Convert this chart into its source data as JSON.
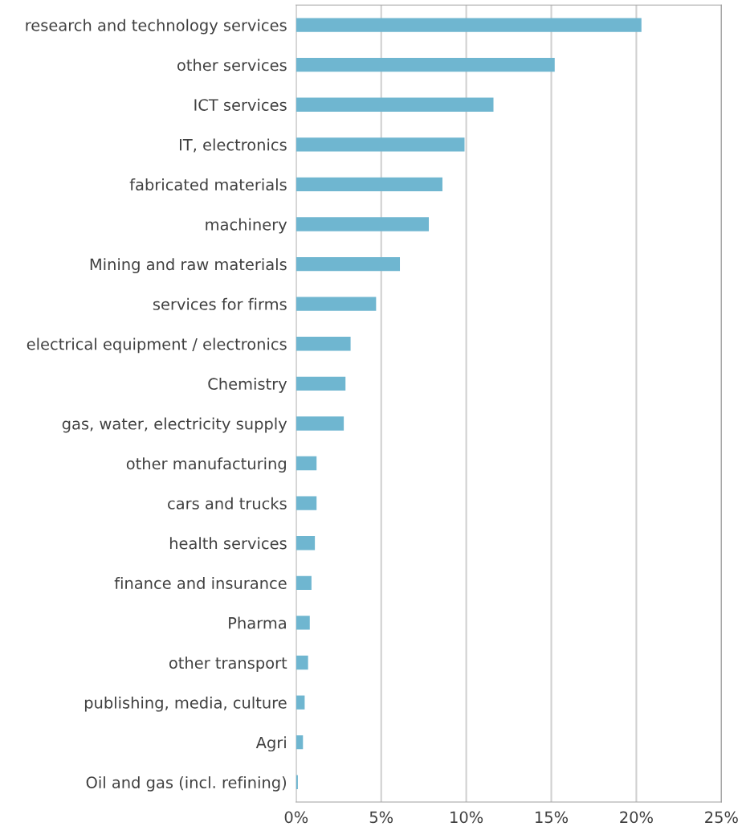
{
  "chart_data": {
    "type": "bar",
    "orientation": "horizontal",
    "categories": [
      "research and technology services",
      "other services",
      "ICT services",
      "IT, electronics",
      "fabricated materials",
      "machinery",
      "Mining and raw materials",
      "services for firms",
      "electrical equipment / electronics",
      "Chemistry",
      "gas, water, electricity supply",
      "other manufacturing",
      "cars and trucks",
      "health services",
      "finance and insurance",
      "Pharma",
      "other transport",
      "publishing, media, culture",
      "Agri",
      "Oil and gas (incl. refining)"
    ],
    "values": [
      20.3,
      15.2,
      11.6,
      9.9,
      8.6,
      7.8,
      6.1,
      4.7,
      3.2,
      2.9,
      2.8,
      1.2,
      1.2,
      1.1,
      0.9,
      0.8,
      0.7,
      0.5,
      0.4,
      0.1
    ],
    "color": "#6fb6d0",
    "xlim": [
      0,
      25
    ],
    "xticks": [
      {
        "value": 0,
        "label": "0%"
      },
      {
        "value": 5,
        "label": "5%"
      },
      {
        "value": 10,
        "label": "10%"
      },
      {
        "value": 15,
        "label": "15%"
      },
      {
        "value": 20,
        "label": "20%"
      },
      {
        "value": 25,
        "label": "25%"
      }
    ],
    "grid": "x",
    "legend": false
  }
}
